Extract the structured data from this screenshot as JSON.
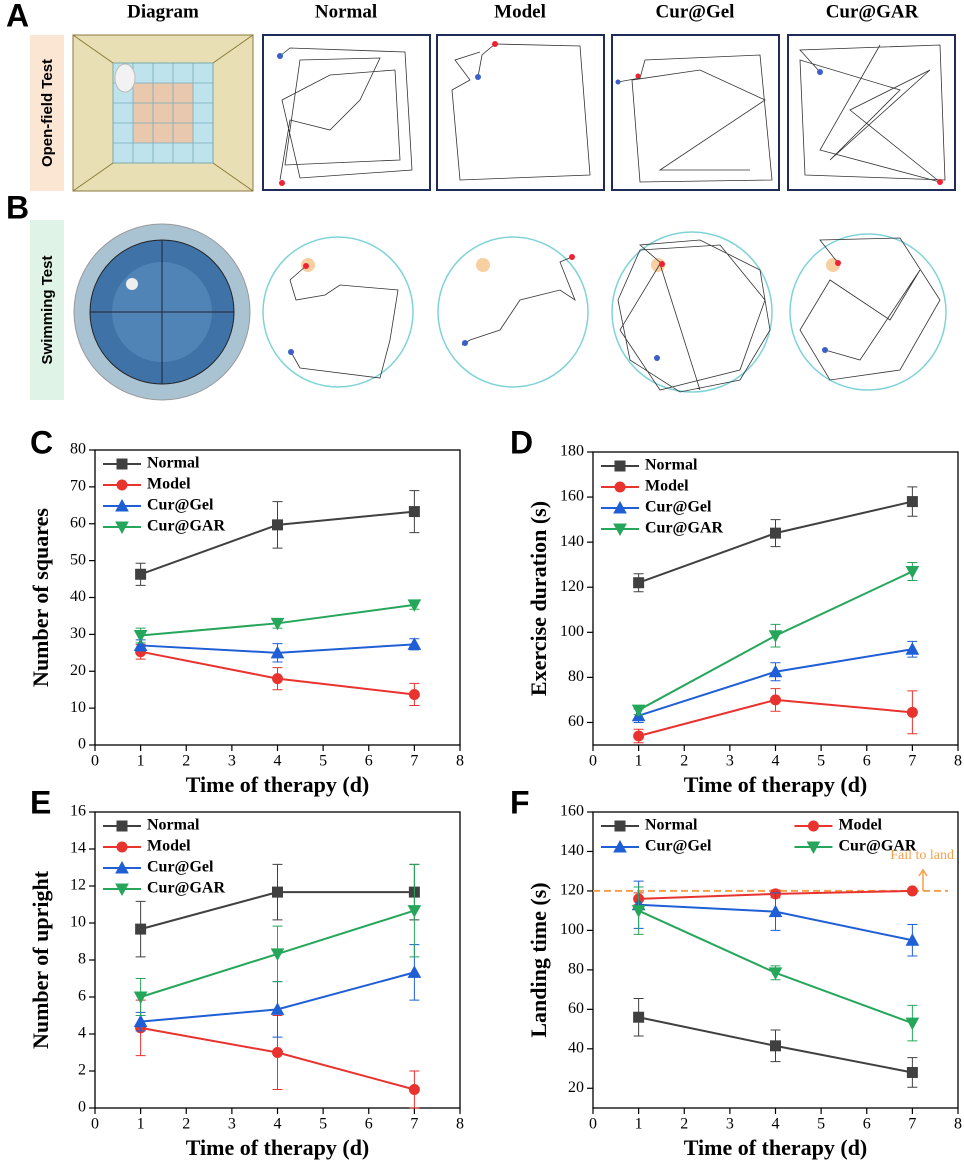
{
  "open_field": {
    "panel": "A",
    "row_label": "Open-field Test",
    "columns": [
      "Diagram",
      "Normal",
      "Model",
      "Cur@Gel",
      "Cur@GAR"
    ]
  },
  "swimming": {
    "panel": "B",
    "row_label": "Swimming Test"
  },
  "chart_data": [
    {
      "type": "line",
      "panel": "C",
      "xlabel": "Time of therapy (d)",
      "ylabel": "Number of squares",
      "x": [
        1,
        4,
        7
      ],
      "xlim": [
        0,
        8
      ],
      "xticks": [
        0,
        1,
        2,
        3,
        4,
        5,
        6,
        7,
        8
      ],
      "ylim": [
        0,
        80
      ],
      "yticks": [
        0,
        10,
        20,
        30,
        40,
        50,
        60,
        70,
        80
      ],
      "legend_columns": 1,
      "series": [
        {
          "name": "Normal",
          "color": "#404040",
          "marker": "square",
          "values": [
            46.3,
            59.7,
            63.3
          ],
          "errors": [
            3,
            6.3,
            5.7
          ]
        },
        {
          "name": "Model",
          "color": "#e8332f",
          "marker": "circle",
          "values": [
            25.3,
            18,
            13.7
          ],
          "errors": [
            2,
            3,
            3
          ]
        },
        {
          "name": "Cur@Gel",
          "color": "#1f5fd6",
          "marker": "triangle-up",
          "values": [
            27,
            25,
            27.3
          ],
          "errors": [
            1.5,
            2.5,
            1.5
          ]
        },
        {
          "name": "Cur@GAR",
          "color": "#26a65b",
          "marker": "triangle-down",
          "values": [
            29.7,
            33,
            38
          ],
          "errors": [
            2,
            1.3,
            1.2
          ]
        }
      ]
    },
    {
      "type": "line",
      "panel": "D",
      "xlabel": "Time of therapy (d)",
      "ylabel": "Exercise duration (s)",
      "x": [
        1,
        4,
        7
      ],
      "xlim": [
        0,
        8
      ],
      "xticks": [
        0,
        1,
        2,
        3,
        4,
        5,
        6,
        7,
        8
      ],
      "ylim": [
        50,
        180
      ],
      "yticks": [
        60,
        80,
        100,
        120,
        140,
        160,
        180
      ],
      "legend_columns": 1,
      "series": [
        {
          "name": "Normal",
          "color": "#404040",
          "marker": "square",
          "values": [
            122,
            144,
            158
          ],
          "errors": [
            4,
            6,
            6.5
          ]
        },
        {
          "name": "Model",
          "color": "#e8332f",
          "marker": "circle",
          "values": [
            54,
            70,
            64.5
          ],
          "errors": [
            3,
            5,
            9.5
          ]
        },
        {
          "name": "Cur@Gel",
          "color": "#1f5fd6",
          "marker": "triangle-up",
          "values": [
            63,
            82.5,
            92.5
          ],
          "errors": [
            3,
            4,
            3.5
          ]
        },
        {
          "name": "Cur@GAR",
          "color": "#26a65b",
          "marker": "triangle-down",
          "values": [
            65.5,
            98.5,
            127
          ],
          "errors": [
            2,
            5,
            4
          ]
        }
      ]
    },
    {
      "type": "line",
      "panel": "E",
      "xlabel": "Time of therapy (d)",
      "ylabel": "Number of upright",
      "x": [
        1,
        4,
        7
      ],
      "xlim": [
        0,
        8
      ],
      "xticks": [
        0,
        1,
        2,
        3,
        4,
        5,
        6,
        7,
        8
      ],
      "ylim": [
        0,
        16
      ],
      "yticks": [
        0,
        2,
        4,
        6,
        8,
        10,
        12,
        14,
        16
      ],
      "legend_columns": 1,
      "series": [
        {
          "name": "Normal",
          "color": "#404040",
          "marker": "square",
          "values": [
            9.67,
            11.67,
            11.67
          ],
          "errors": [
            1.5,
            1.5,
            1.5
          ]
        },
        {
          "name": "Model",
          "color": "#e8332f",
          "marker": "circle",
          "values": [
            4.33,
            3,
            1
          ],
          "errors": [
            1.5,
            2,
            1
          ]
        },
        {
          "name": "Cur@Gel",
          "color": "#1f5fd6",
          "marker": "triangle-up",
          "values": [
            4.67,
            5.33,
            7.33
          ],
          "errors": [
            0.5,
            1.5,
            1.5
          ]
        },
        {
          "name": "Cur@GAR",
          "color": "#26a65b",
          "marker": "triangle-down",
          "values": [
            6,
            8.33,
            10.67
          ],
          "errors": [
            1,
            1.5,
            2.5
          ]
        }
      ]
    },
    {
      "type": "line",
      "panel": "F",
      "xlabel": "Time of therapy (d)",
      "ylabel": "Landing time (s)",
      "x": [
        1,
        4,
        7
      ],
      "xlim": [
        0,
        8
      ],
      "xticks": [
        0,
        1,
        2,
        3,
        4,
        5,
        6,
        7,
        8
      ],
      "ylim": [
        10,
        160
      ],
      "yticks": [
        20,
        40,
        60,
        80,
        100,
        120,
        140,
        160
      ],
      "legend_columns": 2,
      "reference_line": {
        "value": 120,
        "color": "#f5a04a",
        "label": "Fail to land"
      },
      "series": [
        {
          "name": "Normal",
          "color": "#404040",
          "marker": "square",
          "values": [
            56,
            41.5,
            28
          ],
          "errors": [
            9.5,
            8,
            7.5
          ]
        },
        {
          "name": "Model",
          "color": "#e8332f",
          "marker": "circle",
          "values": [
            116,
            118.5,
            120
          ],
          "errors": [
            3,
            2,
            0
          ]
        },
        {
          "name": "Cur@Gel",
          "color": "#1f5fd6",
          "marker": "triangle-up",
          "values": [
            113,
            109.5,
            95
          ],
          "errors": [
            12,
            9.5,
            8
          ]
        },
        {
          "name": "Cur@GAR",
          "color": "#26a65b",
          "marker": "triangle-down",
          "values": [
            110,
            78.5,
            53
          ],
          "errors": [
            12,
            3.5,
            9
          ]
        }
      ]
    }
  ]
}
